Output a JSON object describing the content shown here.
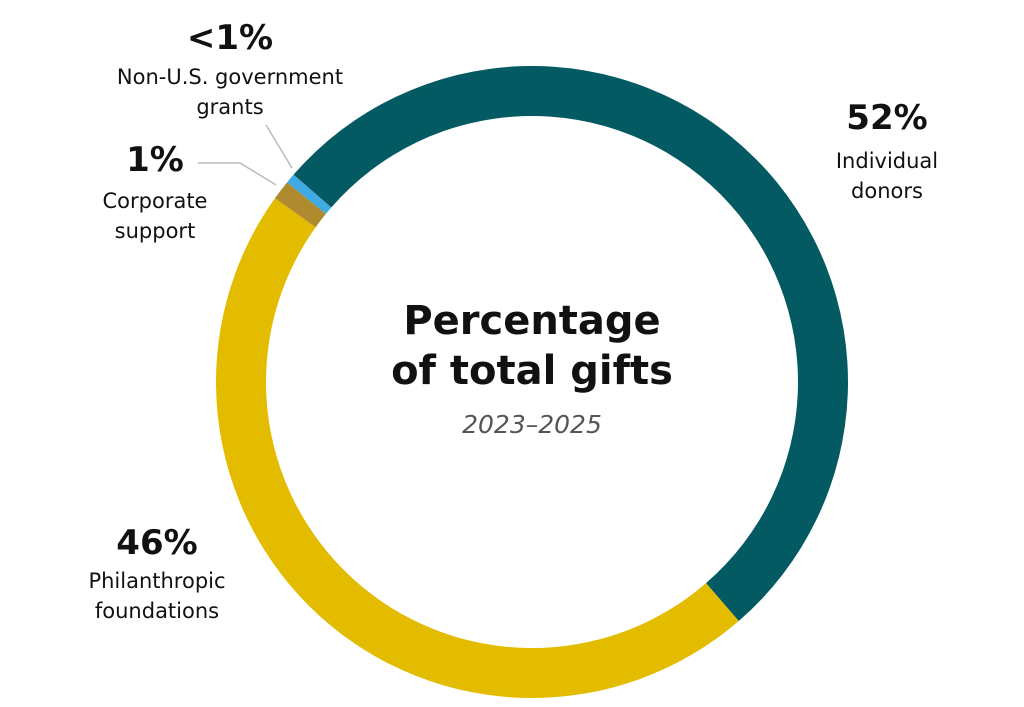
{
  "chart_data": {
    "type": "donut",
    "title": "Percentage of total gifts",
    "subtitle": "2023–2025",
    "categories": [
      "Individual donors",
      "Philanthropic foundations",
      "Corporate support",
      "Non-U.S. government grants"
    ],
    "values": [
      52,
      46,
      1,
      0.5
    ],
    "value_labels": [
      "52%",
      "46%",
      "1%",
      "<1%"
    ],
    "colors": [
      "#035a63",
      "#e3bc00",
      "#b08a2e",
      "#40abe2"
    ]
  }
}
